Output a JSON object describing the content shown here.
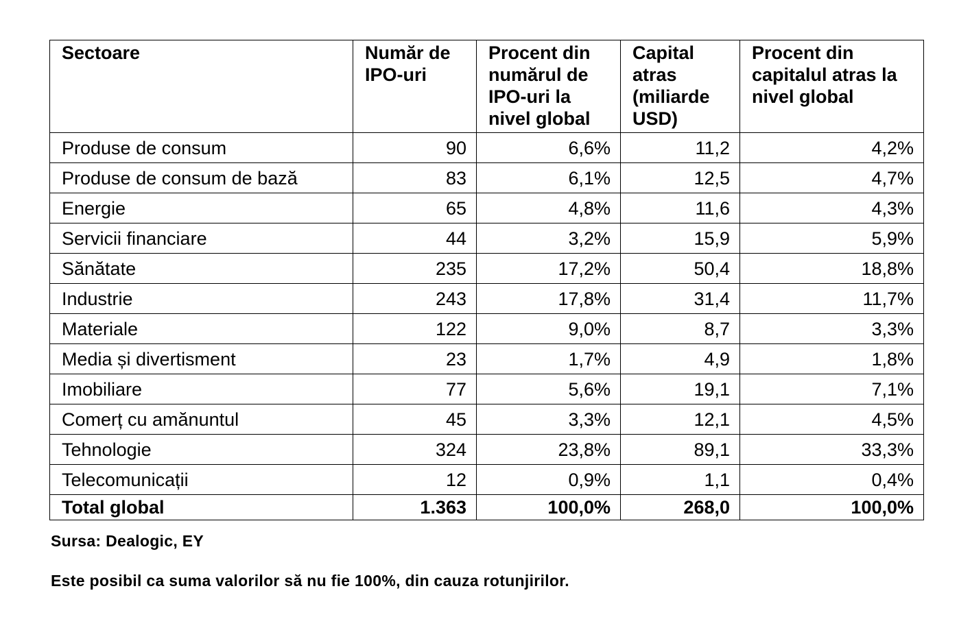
{
  "table": {
    "headers": [
      "Sectoare",
      "Număr de IPO-uri",
      "Procent din numărul de IPO-uri la nivel global",
      "Capital atras (miliarde USD)",
      "Procent din capitalul atras la nivel global"
    ],
    "rows": [
      [
        "Produse de consum",
        "90",
        "6,6%",
        "11,2",
        "4,2%"
      ],
      [
        "Produse de consum de bază",
        "83",
        "6,1%",
        "12,5",
        "4,7%"
      ],
      [
        "Energie",
        "65",
        "4,8%",
        "11,6",
        "4,3%"
      ],
      [
        "Servicii financiare",
        "44",
        "3,2%",
        "15,9",
        "5,9%"
      ],
      [
        "Sănătate",
        "235",
        "17,2%",
        "50,4",
        "18,8%"
      ],
      [
        "Industrie",
        "243",
        "17,8%",
        "31,4",
        "11,7%"
      ],
      [
        "Materiale",
        "122",
        "9,0%",
        "8,7",
        "3,3%"
      ],
      [
        "Media și divertisment",
        "23",
        "1,7%",
        "4,9",
        "1,8%"
      ],
      [
        "Imobiliare",
        "77",
        "5,6%",
        "19,1",
        "7,1%"
      ],
      [
        "Comerț cu amănuntul",
        "45",
        "3,3%",
        "12,1",
        "4,5%"
      ],
      [
        "Tehnologie",
        "324",
        "23,8%",
        "89,1",
        "33,3%"
      ],
      [
        "Telecomunicații",
        "12",
        "0,9%",
        "1,1",
        "0,4%"
      ]
    ],
    "total": [
      "Total global",
      "1.363",
      "100,0%",
      "268,0",
      "100,0%"
    ]
  },
  "source_note": "Sursa: Dealogic, EY",
  "disclaimer": "Este posibil ca suma valorilor să nu fie 100%, din cauza rotunjirilor."
}
